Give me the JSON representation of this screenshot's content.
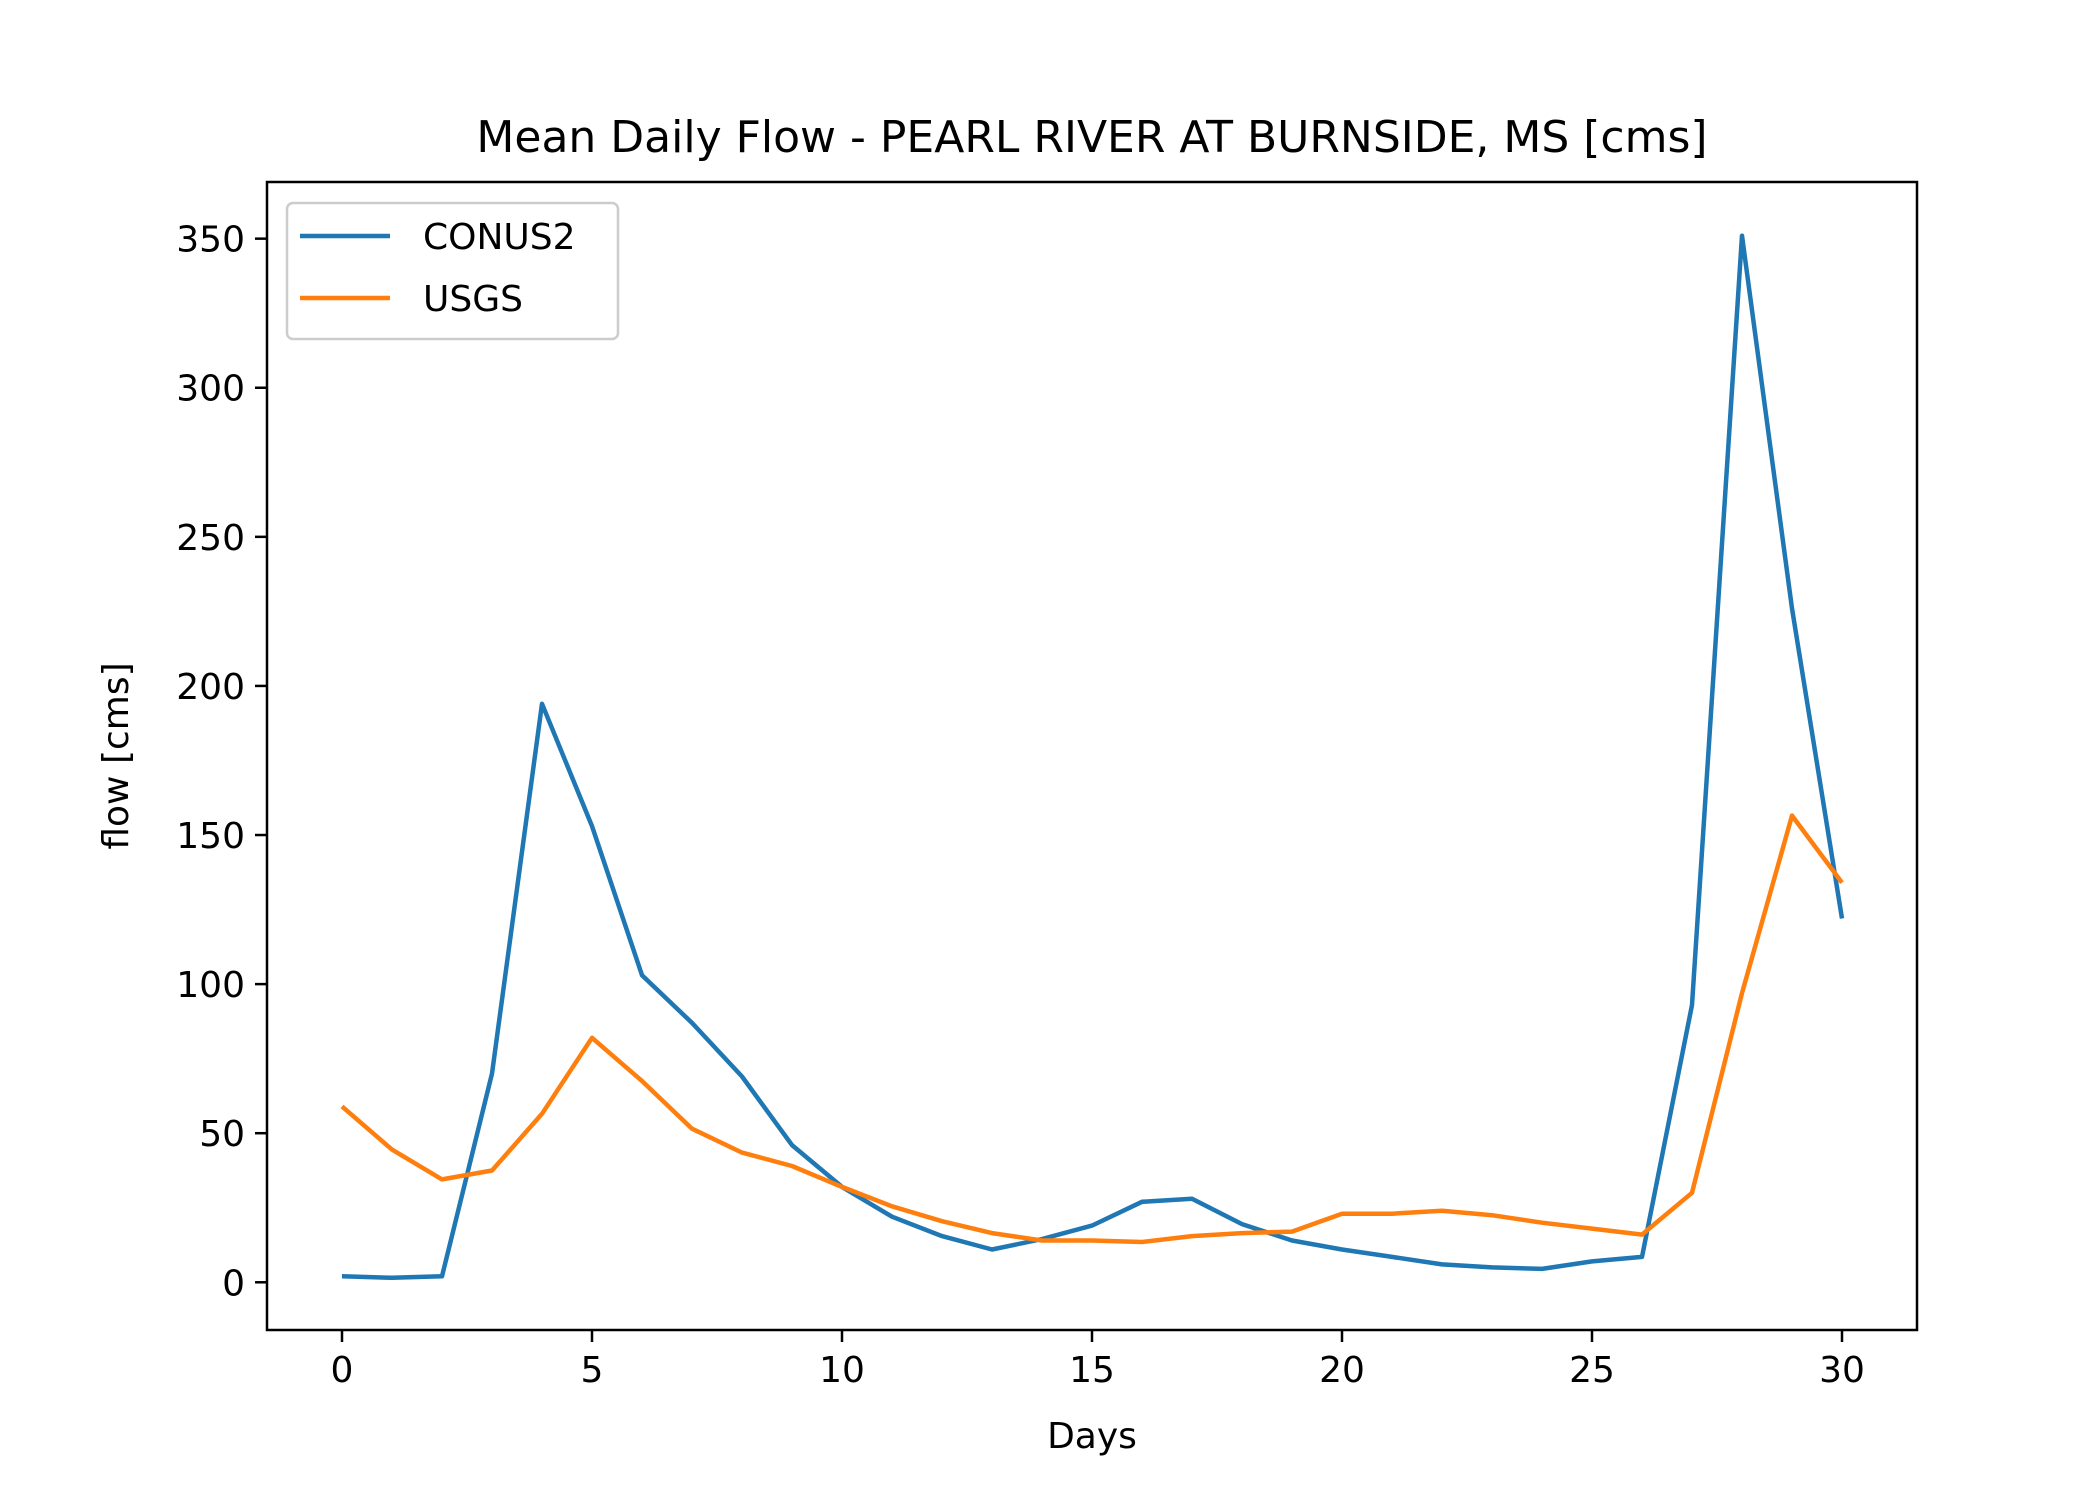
{
  "chart_data": {
    "type": "line",
    "title": "Mean Daily Flow - PEARL RIVER AT BURNSIDE, MS [cms]",
    "xlabel": "Days",
    "ylabel": "flow [cms]",
    "xlim": [
      -1.5,
      31.5
    ],
    "ylim": [
      -16,
      369
    ],
    "xticks": [
      0,
      5,
      10,
      15,
      20,
      25,
      30
    ],
    "yticks": [
      0,
      50,
      100,
      150,
      200,
      250,
      300,
      350
    ],
    "grid": false,
    "legend_position": "upper-left",
    "x": [
      0,
      1,
      2,
      3,
      4,
      5,
      6,
      7,
      8,
      9,
      10,
      11,
      12,
      13,
      14,
      15,
      16,
      17,
      18,
      19,
      20,
      21,
      22,
      23,
      24,
      25,
      26,
      27,
      28,
      29,
      30
    ],
    "series": [
      {
        "name": "CONUS2",
        "color": "#1f77b4",
        "values": [
          2,
          1.5,
          2,
          70,
          194,
          153,
          103,
          87,
          69,
          46,
          32,
          22,
          15.5,
          11,
          14.5,
          19,
          27,
          28,
          19.5,
          14,
          11,
          8.5,
          6,
          5,
          4.5,
          7,
          8.5,
          93,
          351,
          226,
          122
        ]
      },
      {
        "name": "USGS",
        "color": "#ff7f0e",
        "values": [
          59,
          44.5,
          34.5,
          37.5,
          56.5,
          82,
          67.5,
          51.5,
          43.5,
          39,
          32,
          25.5,
          20.5,
          16.5,
          14,
          14,
          13.5,
          15.5,
          16.5,
          17,
          23,
          23,
          24,
          22.5,
          20,
          18,
          16,
          30,
          97,
          156.5,
          134
        ]
      }
    ]
  }
}
